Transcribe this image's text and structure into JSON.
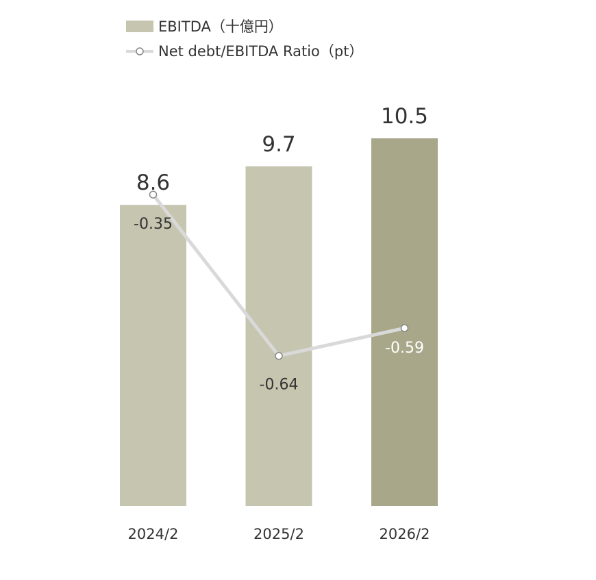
{
  "legend": {
    "bar_label": "EBITDA（十億円）",
    "line_label": "Net debt/EBITDA Ratio（pt）"
  },
  "colors": {
    "bar_default": "#c6c5b0",
    "bar_highlight": "#a8a789",
    "line": "#d9d9d9",
    "marker_fill": "#ffffff",
    "marker_stroke": "#888888",
    "text_dark": "#333333",
    "text_light": "#ffffff"
  },
  "chart_data": {
    "type": "bar",
    "categories": [
      "2024/2",
      "2025/2",
      "2026/2"
    ],
    "series": [
      {
        "name": "EBITDA（十億円）",
        "type": "bar",
        "values": [
          8.6,
          9.7,
          10.5
        ],
        "labels": [
          "8.6",
          "9.7",
          "10.5"
        ],
        "highlight_index": 2
      },
      {
        "name": "Net debt/EBITDA Ratio（pt）",
        "type": "line",
        "values": [
          -0.35,
          -0.64,
          -0.59
        ],
        "labels": [
          "-0.35",
          "-0.64",
          "-0.59"
        ]
      }
    ],
    "bar_ylim": [
      0,
      10.5
    ],
    "line_ylim": [
      -0.91,
      0.0
    ],
    "legend_position": "top-left",
    "grid": false
  }
}
